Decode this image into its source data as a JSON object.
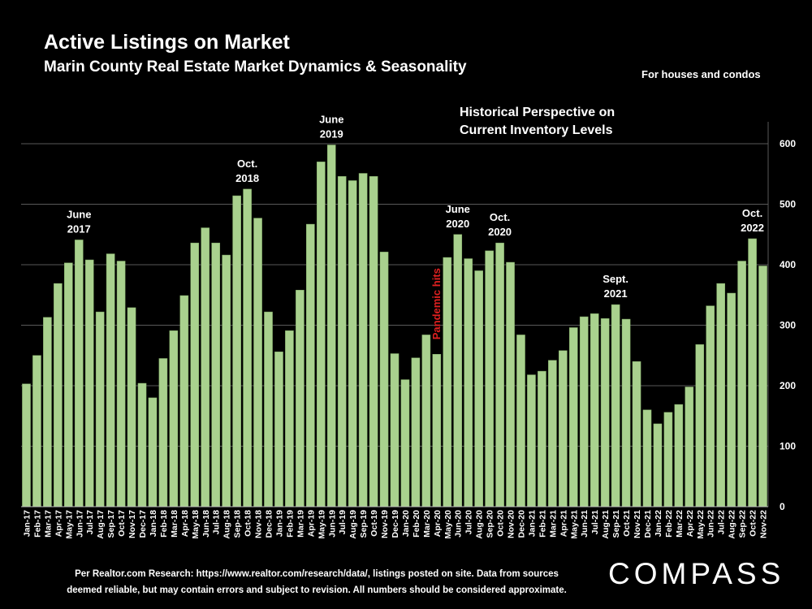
{
  "header": {
    "title": "Active Listings on Market",
    "subtitle": "Marin County Real Estate Market Dynamics & Seasonality",
    "note": "For houses and condos",
    "perspective_line1": "Historical Perspective on",
    "perspective_line2": "Current Inventory Levels"
  },
  "footer": {
    "line1": "Per Realtor.com Research:  https://www.realtor.com/research/data/, listings posted on site. Data from sources",
    "line2": "deemed reliable, but may contain errors and subject to revision. All numbers should be considered approximate.",
    "logo": "COMPASS"
  },
  "colors": {
    "bar": "#a9d18e",
    "bar_edge": "#7fa865",
    "grid": "#595959",
    "annotation": "#ffffff",
    "event": "#e02020"
  },
  "chart_data": {
    "type": "bar",
    "categories": [
      "Jan-17",
      "Feb-17",
      "Mar-17",
      "Apr-17",
      "May-17",
      "Jun-17",
      "Jul-17",
      "Aug-17",
      "Sep-17",
      "Oct-17",
      "Nov-17",
      "Dec-17",
      "Jan-18",
      "Feb-18",
      "Mar-18",
      "Apr-18",
      "May-18",
      "Jun-18",
      "Jul-18",
      "Aug-18",
      "Sep-18",
      "Oct-18",
      "Nov-18",
      "Dec-18",
      "Jan-19",
      "Feb-19",
      "Mar-19",
      "Apr-19",
      "May-19",
      "Jun-19",
      "Jul-19",
      "Aug-19",
      "Sep-19",
      "Oct-19",
      "Nov-19",
      "Dec-19",
      "Jan-20",
      "Feb-20",
      "Mar-20",
      "Apr-20",
      "May-20",
      "Jun-20",
      "Jul-20",
      "Aug-20",
      "Sep-20",
      "Oct-20",
      "Nov-20",
      "Dec-20",
      "Jan-21",
      "Feb-21",
      "Mar-21",
      "Apr-21",
      "May-21",
      "Jun-21",
      "Jul-21",
      "Aug-21",
      "Sep-21",
      "Oct-21",
      "Nov-21",
      "Dec-21",
      "Jan-22",
      "Feb-22",
      "Mar-22",
      "Apr-22",
      "May-22",
      "Jun-22",
      "Jul-22",
      "Aug-22",
      "Sep-22",
      "Oct-22",
      "Nov-22"
    ],
    "values": [
      203,
      250,
      313,
      369,
      403,
      441,
      408,
      322,
      418,
      406,
      329,
      204,
      180,
      245,
      291,
      349,
      436,
      461,
      436,
      416,
      514,
      525,
      477,
      322,
      256,
      291,
      358,
      467,
      570,
      598,
      546,
      539,
      551,
      546,
      421,
      253,
      210,
      246,
      284,
      252,
      412,
      450,
      410,
      390,
      423,
      436,
      404,
      284,
      218,
      224,
      242,
      258,
      296,
      314,
      319,
      311,
      334,
      310,
      240,
      160,
      137,
      156,
      169,
      198,
      268,
      332,
      369,
      353,
      406,
      443,
      398
    ],
    "ylim": [
      0,
      630
    ],
    "yticks": [
      0,
      100,
      200,
      300,
      400,
      500,
      600
    ],
    "grid": true,
    "annotations": [
      {
        "index": 5,
        "line1": "June",
        "line2": "2017"
      },
      {
        "index": 21,
        "line1": "Oct.",
        "line2": "2018"
      },
      {
        "index": 29,
        "line1": "June",
        "line2": "2019"
      },
      {
        "index": 41,
        "line1": "June",
        "line2": "2020"
      },
      {
        "index": 45,
        "line1": "Oct.",
        "line2": "2020"
      },
      {
        "index": 56,
        "line1": "Sept.",
        "line2": "2021"
      },
      {
        "index": 69,
        "line1": "Oct.",
        "line2": "2022"
      }
    ],
    "event_label": {
      "text": "Pandemic hits",
      "index": 39
    }
  }
}
